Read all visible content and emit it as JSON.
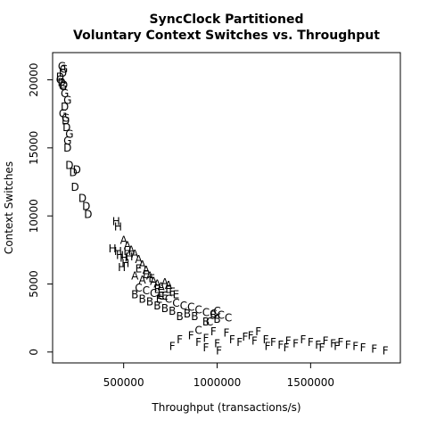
{
  "chart_data": {
    "type": "scatter",
    "title": "SyncClock Partitioned",
    "subtitle": "Voluntary Context Switches vs. Throughput",
    "xlabel": "Throughput (transactions/s)",
    "ylabel": "Context Switches",
    "xlim": [
      120000,
      1980000
    ],
    "ylim": [
      -800,
      22000
    ],
    "x_ticks": [
      500000,
      1000000,
      1500000
    ],
    "x_tick_labels": [
      "500000",
      "1000000",
      "1500000"
    ],
    "y_ticks": [
      0,
      5000,
      10000,
      15000,
      20000
    ],
    "y_tick_labels": [
      "0",
      "5000",
      "10000",
      "15000",
      "20000"
    ],
    "grid": false,
    "marker": "letter",
    "series": [
      {
        "name": "G",
        "points": [
          [
            170000,
            21000
          ],
          [
            180000,
            20800
          ],
          [
            160000,
            20000
          ],
          [
            175000,
            19500
          ],
          [
            185000,
            19000
          ],
          [
            200000,
            18500
          ],
          [
            190000,
            17200
          ],
          [
            175000,
            17500
          ],
          [
            210000,
            16000
          ],
          [
            200000,
            15500
          ]
        ]
      },
      {
        "name": "D",
        "points": [
          [
            160000,
            20200
          ],
          [
            168000,
            19800
          ],
          [
            175000,
            20500
          ],
          [
            180000,
            19600
          ],
          [
            185000,
            18000
          ],
          [
            190000,
            17000
          ],
          [
            195000,
            16500
          ],
          [
            200000,
            15000
          ],
          [
            210000,
            13700
          ],
          [
            230000,
            13200
          ],
          [
            250000,
            13400
          ],
          [
            240000,
            12100
          ],
          [
            280000,
            11300
          ],
          [
            300000,
            10700
          ],
          [
            310000,
            10100
          ]
        ]
      },
      {
        "name": "H",
        "points": [
          [
            460000,
            9600
          ],
          [
            470000,
            9200
          ],
          [
            440000,
            7600
          ],
          [
            470000,
            7400
          ],
          [
            480000,
            7100
          ],
          [
            500000,
            6900
          ],
          [
            520000,
            7400
          ],
          [
            530000,
            7000
          ],
          [
            490000,
            6200
          ],
          [
            510000,
            6500
          ]
        ]
      },
      {
        "name": "A",
        "points": [
          [
            500000,
            8200
          ],
          [
            520000,
            7800
          ],
          [
            540000,
            7500
          ],
          [
            560000,
            7200
          ],
          [
            580000,
            6800
          ],
          [
            600000,
            6400
          ],
          [
            620000,
            6000
          ],
          [
            640000,
            5600
          ],
          [
            660000,
            5200
          ],
          [
            680000,
            5000
          ],
          [
            700000,
            4800
          ],
          [
            720000,
            5100
          ],
          [
            740000,
            4900
          ],
          [
            560000,
            5600
          ],
          [
            600000,
            5300
          ]
        ]
      },
      {
        "name": "E",
        "points": [
          [
            580000,
            6100
          ],
          [
            620000,
            5700
          ],
          [
            650000,
            5400
          ],
          [
            680000,
            4600
          ],
          [
            700000,
            4300
          ],
          [
            720000,
            4100
          ],
          [
            740000,
            4600
          ],
          [
            760000,
            4400
          ],
          [
            780000,
            4200
          ],
          [
            690000,
            3900
          ]
        ]
      },
      {
        "name": "B",
        "points": [
          [
            560000,
            4200
          ],
          [
            600000,
            3900
          ],
          [
            640000,
            3700
          ],
          [
            680000,
            3400
          ],
          [
            720000,
            3200
          ],
          [
            760000,
            3000
          ],
          [
            800000,
            2600
          ],
          [
            840000,
            2800
          ],
          [
            880000,
            2600
          ],
          [
            940000,
            2200
          ],
          [
            980000,
            2700
          ],
          [
            1000000,
            2400
          ]
        ]
      },
      {
        "name": "C",
        "points": [
          [
            580000,
            4700
          ],
          [
            620000,
            4500
          ],
          [
            660000,
            4300
          ],
          [
            700000,
            4100
          ],
          [
            740000,
            3900
          ],
          [
            780000,
            3600
          ],
          [
            820000,
            3400
          ],
          [
            860000,
            3300
          ],
          [
            900000,
            3100
          ],
          [
            940000,
            2900
          ],
          [
            980000,
            2800
          ],
          [
            1020000,
            2700
          ],
          [
            1060000,
            2500
          ],
          [
            1000000,
            3000
          ],
          [
            960000,
            2200
          ],
          [
            900000,
            1600
          ]
        ]
      },
      {
        "name": "F",
        "points": [
          [
            760000,
            400
          ],
          [
            800000,
            900
          ],
          [
            860000,
            1200
          ],
          [
            900000,
            700
          ],
          [
            940000,
            1000
          ],
          [
            980000,
            1500
          ],
          [
            1000000,
            600
          ],
          [
            1050000,
            1400
          ],
          [
            1080000,
            900
          ],
          [
            1120000,
            700
          ],
          [
            1150000,
            1100
          ],
          [
            1180000,
            1200
          ],
          [
            1220000,
            1500
          ],
          [
            1260000,
            900
          ],
          [
            1300000,
            700
          ],
          [
            1340000,
            500
          ],
          [
            1380000,
            800
          ],
          [
            1420000,
            600
          ],
          [
            1460000,
            900
          ],
          [
            1500000,
            700
          ],
          [
            1540000,
            500
          ],
          [
            1580000,
            800
          ],
          [
            1620000,
            600
          ],
          [
            1660000,
            700
          ],
          [
            1700000,
            500
          ],
          [
            1740000,
            400
          ],
          [
            1780000,
            300
          ],
          [
            1840000,
            200
          ],
          [
            1900000,
            100
          ],
          [
            1010000,
            100
          ],
          [
            940000,
            300
          ],
          [
            1200000,
            800
          ],
          [
            1270000,
            400
          ],
          [
            1370000,
            300
          ],
          [
            1560000,
            300
          ],
          [
            1640000,
            400
          ]
        ]
      }
    ]
  }
}
